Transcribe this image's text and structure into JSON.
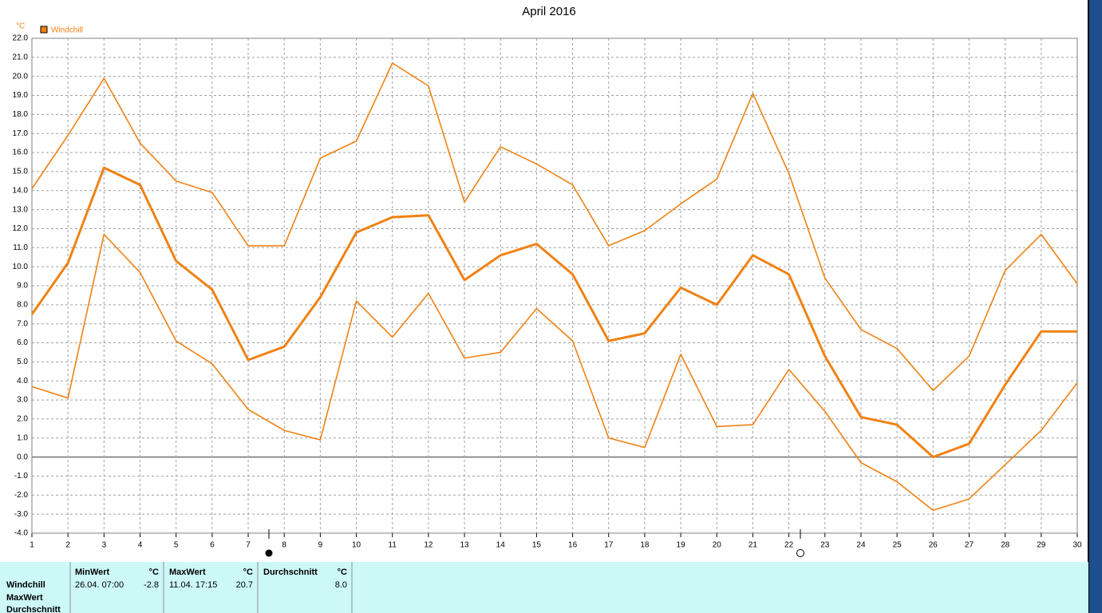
{
  "chart_data": {
    "type": "line",
    "title": "April 2016",
    "y_unit": "°C",
    "legend": "Windchill",
    "color": "#f08214",
    "x": [
      1,
      2,
      3,
      4,
      5,
      6,
      7,
      8,
      9,
      10,
      11,
      12,
      13,
      14,
      15,
      16,
      17,
      18,
      19,
      20,
      21,
      22,
      23,
      24,
      25,
      26,
      27,
      28,
      29,
      30
    ],
    "xlim": [
      1,
      30
    ],
    "xticks": [
      1,
      2,
      3,
      4,
      5,
      6,
      7,
      8,
      9,
      10,
      11,
      12,
      13,
      14,
      15,
      16,
      17,
      18,
      19,
      20,
      21,
      22,
      23,
      24,
      25,
      26,
      27,
      28,
      29,
      30
    ],
    "ylim": [
      -4,
      22
    ],
    "yticks": [
      {
        "value": -4,
        "label": "-4.0"
      },
      {
        "value": -3,
        "label": "-3.0"
      },
      {
        "value": -2,
        "label": "-2.0"
      },
      {
        "value": -1,
        "label": "-1.0"
      },
      {
        "value": 0,
        "label": "0.0"
      },
      {
        "value": 1,
        "label": "1.0"
      },
      {
        "value": 2,
        "label": "2.0"
      },
      {
        "value": 3,
        "label": "3.0"
      },
      {
        "value": 4,
        "label": "4.0"
      },
      {
        "value": 5,
        "label": "5.0"
      },
      {
        "value": 6,
        "label": "6.0"
      },
      {
        "value": 7,
        "label": "7.0"
      },
      {
        "value": 8,
        "label": "8.0"
      },
      {
        "value": 9,
        "label": "9.0"
      },
      {
        "value": 10,
        "label": "10.0"
      },
      {
        "value": 11,
        "label": "11.0"
      },
      {
        "value": 12,
        "label": "12.0"
      },
      {
        "value": 13,
        "label": "13.0"
      },
      {
        "value": 14,
        "label": "14.0"
      },
      {
        "value": 15,
        "label": "15.0"
      },
      {
        "value": 16,
        "label": "16.0"
      },
      {
        "value": 17,
        "label": "17.0"
      },
      {
        "value": 18,
        "label": "18.0"
      },
      {
        "value": 19,
        "label": "19.0"
      },
      {
        "value": 20,
        "label": "20.0"
      },
      {
        "value": 21,
        "label": "21.0"
      },
      {
        "value": 22,
        "label": "22.0"
      }
    ],
    "grid": true,
    "series": [
      {
        "color": "#f08214",
        "values": [
          14.1,
          16.9,
          19.9,
          16.5,
          14.5,
          13.9,
          11.1,
          11.1,
          15.7,
          16.6,
          20.7,
          19.5,
          13.4,
          16.3,
          15.4,
          14.3,
          11.1,
          11.9,
          13.3,
          14.6,
          19.1,
          14.9,
          9.4,
          6.7,
          5.7,
          3.5,
          5.3,
          9.8,
          11.7,
          9.1
        ]
      },
      {
        "color": "#f08214",
        "values": [
          7.5,
          10.2,
          15.2,
          14.3,
          10.3,
          8.8,
          5.1,
          5.8,
          8.4,
          11.8,
          12.6,
          12.7,
          9.3,
          10.6,
          11.2,
          9.6,
          6.1,
          6.5,
          8.9,
          8.0,
          10.6,
          9.6,
          5.3,
          2.1,
          1.7,
          0.0,
          0.7,
          3.8,
          6.6,
          6.6
        ]
      },
      {
        "color": "#f08214",
        "values": [
          3.7,
          3.1,
          11.7,
          9.7,
          6.1,
          4.9,
          2.5,
          1.4,
          0.9,
          8.2,
          6.3,
          8.6,
          5.2,
          5.5,
          7.8,
          6.1,
          1.0,
          0.5,
          5.4,
          1.6,
          1.7,
          4.6,
          2.4,
          -0.3,
          -1.3,
          -2.8,
          -2.2,
          -0.4,
          1.4,
          3.9
        ]
      }
    ]
  },
  "table": {
    "rows": [
      "Windchill",
      "MaxWert",
      "Durchschnitt"
    ],
    "min": {
      "header": "MinWert",
      "unit": "°C",
      "time": "26.04.  07:00",
      "value": "-2.8"
    },
    "max": {
      "header": "MaxWert",
      "unit": "°C",
      "time": "11.04.  17:15",
      "value": "20.7"
    },
    "avg": {
      "header": "Durchschnitt",
      "unit": "°C",
      "value": "8.0"
    }
  }
}
